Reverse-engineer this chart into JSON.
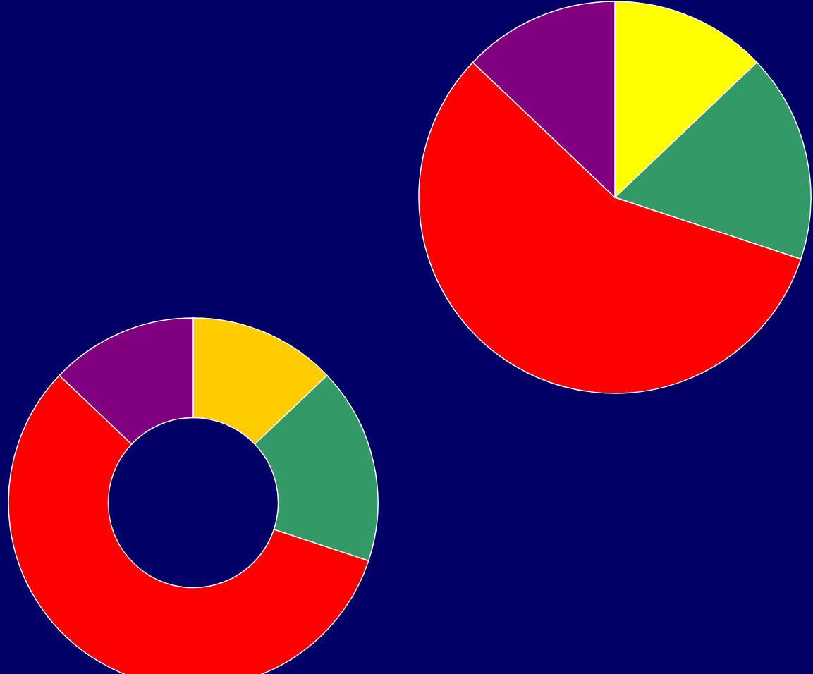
{
  "chart_data": [
    {
      "type": "pie",
      "categories": [
        null,
        null,
        null,
        null
      ],
      "values": [
        12.9,
        17.2,
        57.0,
        12.9
      ],
      "colors": [
        "#ffff00",
        "#339966",
        "#ff0000",
        "#800080"
      ]
    },
    {
      "type": "donut",
      "categories": [
        null,
        null,
        null,
        null
      ],
      "values": [
        12.9,
        17.2,
        57.0,
        12.9
      ],
      "colors": [
        "#ffcc00",
        "#339966",
        "#ff0000",
        "#800080"
      ]
    }
  ]
}
